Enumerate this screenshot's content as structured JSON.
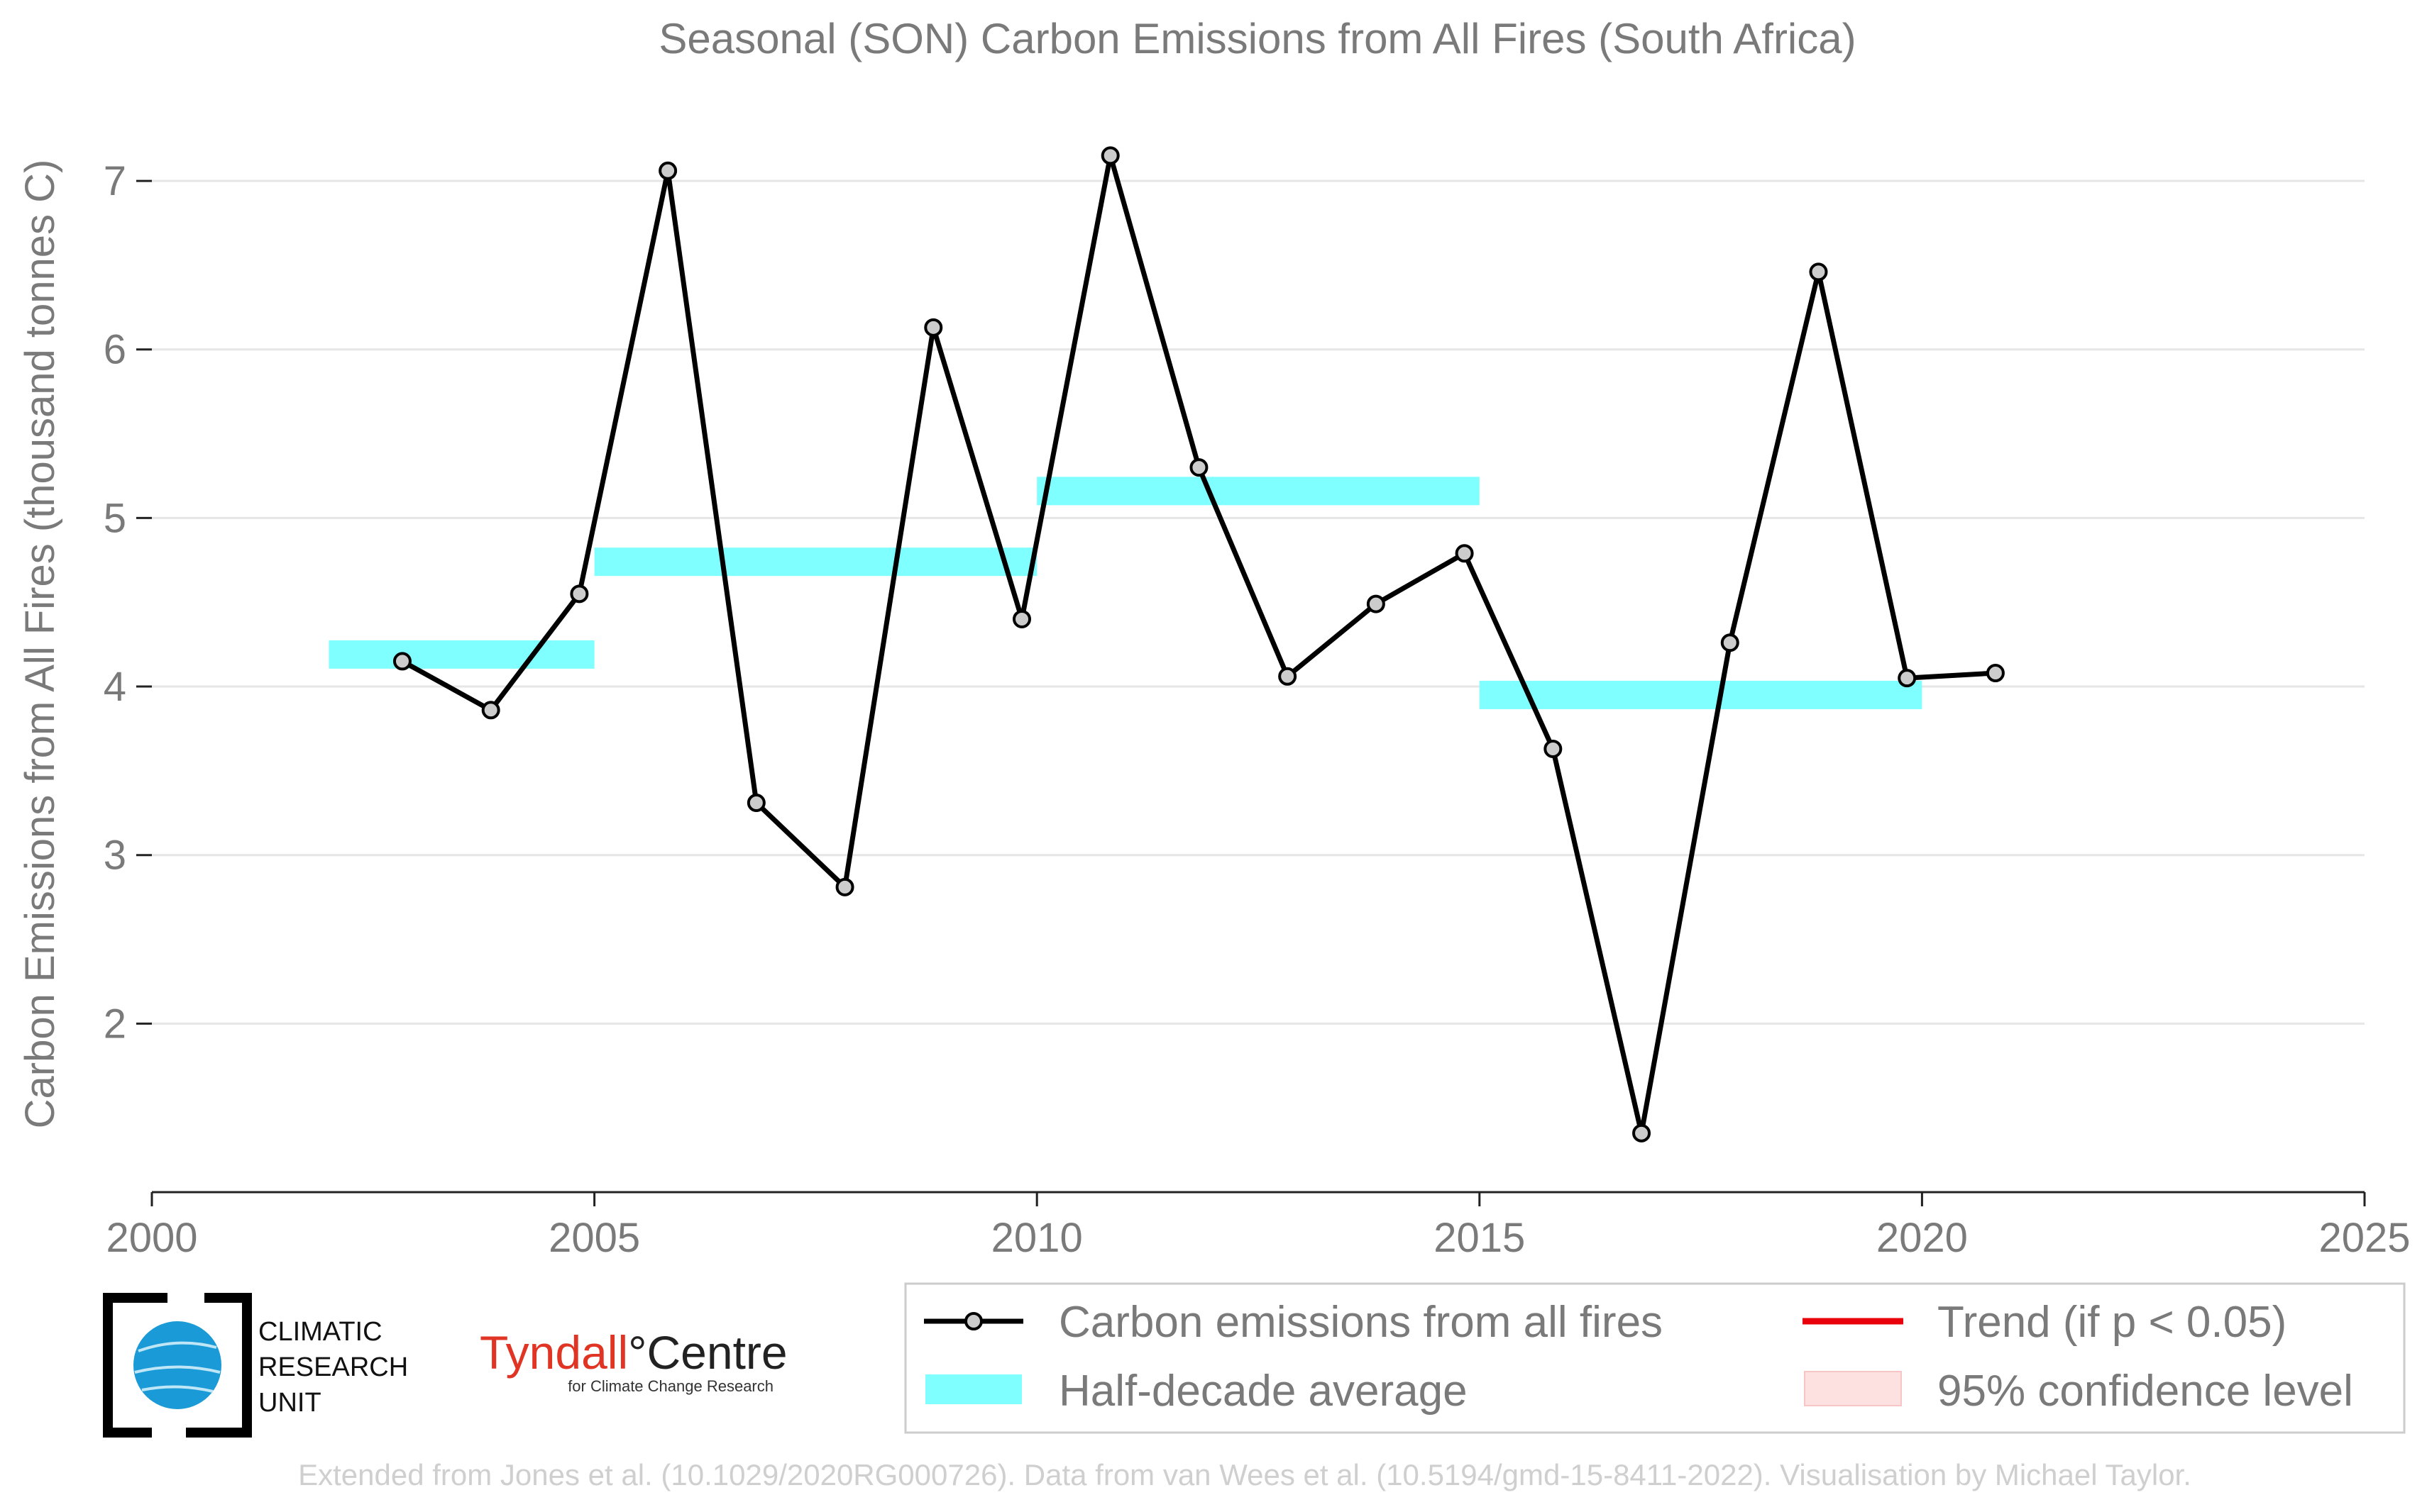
{
  "chart_data": {
    "type": "line",
    "title": "Seasonal (SON) Carbon Emissions from All Fires (South Africa)",
    "xlabel": "",
    "ylabel": "Carbon Emissions from All Fires (thousand tonnes C)",
    "xlim": [
      2000,
      2025
    ],
    "ylim": [
      1.0,
      7.4
    ],
    "x_ticks": [
      "2000",
      "2005",
      "2010",
      "2015",
      "2020",
      "2025"
    ],
    "y_ticks": [
      "2",
      "3",
      "4",
      "5",
      "6",
      "7"
    ],
    "grid": "horizontal",
    "series": [
      {
        "name": "Carbon emissions from all fires",
        "color": "#000000",
        "marker_color": "#cccccc",
        "points": [
          [
            2002.83,
            4.15
          ],
          [
            2003.83,
            3.86
          ],
          [
            2004.83,
            4.55
          ],
          [
            2005.83,
            7.06
          ],
          [
            2006.83,
            3.31
          ],
          [
            2007.83,
            2.81
          ],
          [
            2008.83,
            6.13
          ],
          [
            2009.83,
            4.4
          ],
          [
            2010.83,
            7.15
          ],
          [
            2011.83,
            5.3
          ],
          [
            2012.83,
            4.06
          ],
          [
            2013.83,
            4.49
          ],
          [
            2014.83,
            4.79
          ],
          [
            2015.83,
            3.63
          ],
          [
            2016.83,
            1.35
          ],
          [
            2017.83,
            4.26
          ],
          [
            2018.83,
            6.46
          ],
          [
            2019.83,
            4.05
          ],
          [
            2020.83,
            4.08
          ]
        ]
      }
    ],
    "half_decade_average": {
      "name": "Half-decade average",
      "color": "#7fffff",
      "segments": [
        {
          "x0": 2002,
          "x1": 2005,
          "y": 4.19
        },
        {
          "x0": 2005,
          "x1": 2010,
          "y": 4.74
        },
        {
          "x0": 2010,
          "x1": 2015,
          "y": 5.16
        },
        {
          "x0": 2015,
          "x1": 2020,
          "y": 3.95
        }
      ]
    }
  },
  "legend": {
    "items": [
      {
        "label": "Carbon emissions from all fires",
        "color": "#000000"
      },
      {
        "label": "Trend (if p < 0.05)",
        "color": "#e8000b"
      },
      {
        "label": "Half-decade average",
        "color": "#7fffff"
      },
      {
        "label": "95% confidence level",
        "color": "#fde0e0"
      }
    ]
  },
  "logos": {
    "cru": [
      "CLIMATIC",
      "RESEARCH",
      "UNIT"
    ],
    "tyndall_main": "Tyndall",
    "tyndall_centre": "°Centre",
    "tyndall_sub": "for Climate Change Research"
  },
  "footer": "Extended from Jones et al. (10.1029/2020RG000726). Data from van Wees et al. (10.5194/gmd-15-8411-2022). Visualisation by Michael Taylor."
}
